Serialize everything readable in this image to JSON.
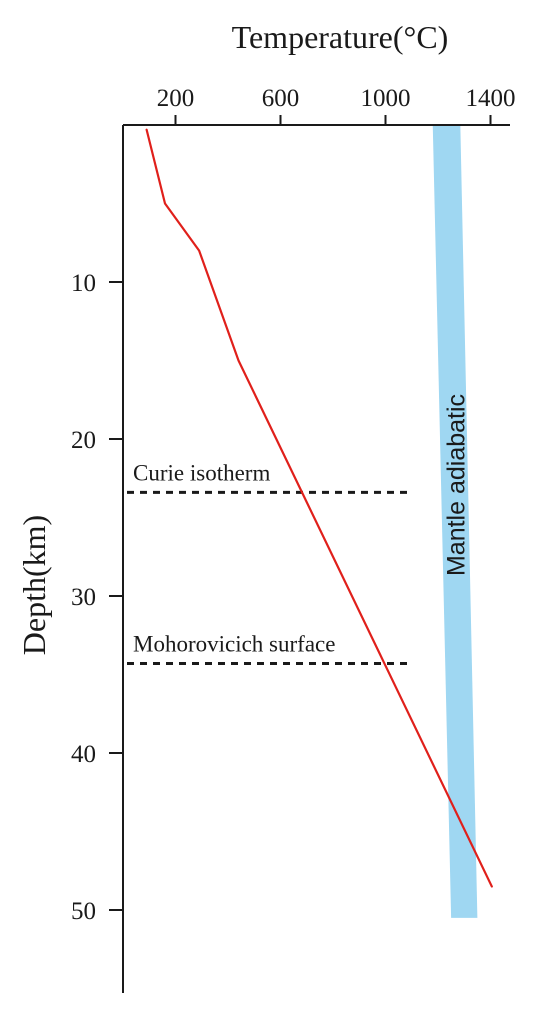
{
  "chart_data": {
    "type": "line",
    "xlabel": "Temperature(°C)",
    "ylabel": "Depth(km)",
    "x_axis_position": "top",
    "y_axis_inverted": true,
    "xlim": [
      0,
      1500
    ],
    "ylim": [
      0,
      55
    ],
    "x_ticks": [
      200,
      600,
      1000,
      1400
    ],
    "x_tick_labels": [
      "200",
      "600",
      "1000",
      "1400"
    ],
    "y_ticks": [
      10,
      20,
      30,
      40,
      50
    ],
    "y_tick_labels": [
      "10",
      "20",
      "30",
      "40",
      "50"
    ],
    "grid": false,
    "series": [
      {
        "color": "#e0201b",
        "x": [
          90,
          160,
          290,
          440,
          1405
        ],
        "y": [
          0.3,
          5,
          8,
          15,
          48.5
        ]
      }
    ],
    "bands": [
      {
        "label": "Mantle adiabatic",
        "color": "#9fd7f2",
        "top": {
          "depth": 0,
          "temp_from": 1180,
          "temp_to": 1285
        },
        "bottom": {
          "depth": 50.5,
          "temp_from": 1250,
          "temp_to": 1350
        }
      }
    ],
    "reference_lines": [
      {
        "label": "Curie isotherm",
        "depth": 23.4,
        "temp_from": 0,
        "temp_to": 1100,
        "style": "dashed"
      },
      {
        "label": "Mohorovicich surface",
        "depth": 34.3,
        "temp_from": 0,
        "temp_to": 1100,
        "style": "dashed"
      }
    ],
    "colors": {
      "axis": "#1a1a1a",
      "curve": "#e0201b",
      "band": "#9fd7f2",
      "dash": "#1a1a1a"
    }
  }
}
